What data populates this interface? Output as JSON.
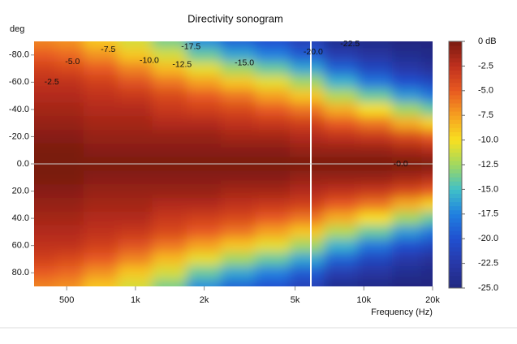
{
  "chart_data": {
    "type": "heatmap",
    "title": "Directivity sonogram",
    "y_label": "deg",
    "x_label": "Frequency (Hz)",
    "log_x": true,
    "xlim": [
      360,
      20000
    ],
    "ylim": [
      -90,
      90
    ],
    "xticks": [
      500,
      {
        "value": 1000,
        "label": "1k"
      },
      {
        "value": 2000,
        "label": "2k"
      },
      {
        "value": 5000,
        "label": "5k"
      },
      {
        "value": 10000,
        "label": "10k"
      },
      {
        "value": 20000,
        "label": "20k"
      }
    ],
    "yticks": [
      {
        "value": -80,
        "label": "-80.0"
      },
      {
        "value": -60,
        "label": "-60.0"
      },
      {
        "value": -40,
        "label": "-40.0"
      },
      {
        "value": -20,
        "label": "-20.0"
      },
      {
        "value": 0,
        "label": "0.0"
      },
      {
        "value": 20,
        "label": "20.0"
      },
      {
        "value": 40,
        "label": "40.0"
      },
      {
        "value": 60,
        "label": "60.0"
      },
      {
        "value": 80,
        "label": "80.0"
      }
    ],
    "x": [
      400,
      500,
      700,
      1000,
      1400,
      2000,
      2800,
      4000,
      5600,
      8000,
      11000,
      16000,
      20000
    ],
    "y": [
      -90,
      -80,
      -70,
      -60,
      -50,
      -40,
      -30,
      -20,
      -10,
      0,
      10,
      20,
      30,
      40,
      50,
      60,
      70,
      80,
      90
    ],
    "z": [
      [
        -6.5,
        -7,
        -9,
        -11,
        -13.5,
        -17,
        -19,
        -20,
        -21.5,
        -24,
        -24.5,
        -25,
        -25
      ],
      [
        -5,
        -5.5,
        -7,
        -9,
        -11,
        -14,
        -16,
        -17.5,
        -19.5,
        -22,
        -23,
        -24,
        -24.5
      ],
      [
        -3.5,
        -4,
        -5,
        -6.5,
        -8.5,
        -10.5,
        -12.5,
        -14,
        -16,
        -19,
        -21,
        -22.5,
        -23.5
      ],
      [
        -2.5,
        -2.5,
        -3.5,
        -4.5,
        -6,
        -7.5,
        -9,
        -10.5,
        -12.5,
        -15.5,
        -18,
        -20,
        -21
      ],
      [
        -2,
        -2,
        -2.5,
        -3,
        -4,
        -5,
        -6,
        -7.5,
        -9,
        -12,
        -14,
        -16.5,
        -18
      ],
      [
        -1.5,
        -1.5,
        -2,
        -2,
        -3,
        -3.5,
        -4,
        -5,
        -6,
        -8,
        -10,
        -12.5,
        -14
      ],
      [
        -1,
        -1,
        -1.5,
        -1.5,
        -2,
        -2,
        -2.5,
        -3,
        -3.5,
        -5,
        -6,
        -8,
        -9.5
      ],
      [
        -0.5,
        -0.5,
        -1,
        -1,
        -1,
        -1,
        -1.5,
        -1.5,
        -2,
        -2.5,
        -3,
        -4,
        -5
      ],
      [
        0,
        0,
        -0.5,
        -0.5,
        -0.5,
        -0.5,
        -0.5,
        -0.5,
        -1,
        -1,
        -1,
        -1.5,
        -2
      ],
      [
        0,
        0,
        0,
        0,
        0,
        0,
        0,
        0,
        0,
        0,
        0,
        0,
        0
      ],
      [
        0,
        0,
        -0.5,
        -0.5,
        -0.5,
        -0.5,
        -0.5,
        -0.5,
        -1,
        -1,
        -1,
        -1.5,
        -2
      ],
      [
        -0.5,
        -0.5,
        -1,
        -1,
        -1,
        -1,
        -1.5,
        -1.5,
        -2,
        -2.5,
        -3,
        -4,
        -5
      ],
      [
        -1,
        -1,
        -1.5,
        -1.5,
        -2,
        -2,
        -2.5,
        -3,
        -3.5,
        -5,
        -6,
        -8,
        -9.5
      ],
      [
        -1.5,
        -1.5,
        -2,
        -2,
        -3,
        -3.5,
        -4,
        -5,
        -6,
        -8,
        -10,
        -12.5,
        -14
      ],
      [
        -2,
        -2,
        -2.5,
        -3,
        -4,
        -5,
        -6,
        -7.5,
        -9,
        -12,
        -14,
        -16.5,
        -18
      ],
      [
        -2.5,
        -2.5,
        -3.5,
        -4.5,
        -6,
        -7.5,
        -9,
        -10.5,
        -12.5,
        -15.5,
        -18,
        -20,
        -21
      ],
      [
        -3.5,
        -4,
        -5,
        -6.5,
        -8.5,
        -10.5,
        -12.5,
        -14,
        -16,
        -19,
        -21,
        -22.5,
        -23.5
      ],
      [
        -5,
        -5.5,
        -7,
        -9,
        -11,
        -14,
        -16,
        -17.5,
        -19.5,
        -22,
        -23,
        -24,
        -24.5
      ],
      [
        -6.5,
        -7,
        -9,
        -11,
        -13.5,
        -17,
        -19,
        -20,
        -21.5,
        -24,
        -24.5,
        -25,
        -25
      ]
    ],
    "colorbar_lim": [
      -25,
      0
    ],
    "colorscale": [
      "#202880",
      "#2838a8",
      "#2050d0",
      "#2080e0",
      "#40c0c8",
      "#a0d860",
      "#f8e020",
      "#f6a020",
      "#e85a20",
      "#c0301e",
      "#7a1a10"
    ],
    "colorbar_ticks": [
      {
        "value": 0,
        "label": "0 dB"
      },
      -2.5,
      {
        "value": -5,
        "label": "-5.0"
      },
      -7.5,
      {
        "value": -10,
        "label": "-10.0"
      },
      -12.5,
      {
        "value": -15,
        "label": "-15.0"
      },
      -17.5,
      {
        "value": -20,
        "label": "-20.0"
      },
      -22.5,
      {
        "value": -25,
        "label": "-25.0"
      }
    ],
    "annotations": [
      {
        "text": "-2.5",
        "x": 430,
        "y": -60
      },
      {
        "text": "-5.0",
        "x": 530,
        "y": -75
      },
      {
        "text": "-7.5",
        "x": 760,
        "y": -84
      },
      {
        "text": "-10.0",
        "x": 1150,
        "y": -76
      },
      {
        "text": "-12.5",
        "x": 1600,
        "y": -73
      },
      {
        "text": "-17.5",
        "x": 1750,
        "y": -86
      },
      {
        "text": "-15.0",
        "x": 3000,
        "y": -74
      },
      {
        "text": "-20.0",
        "x": 6000,
        "y": -82
      },
      {
        "text": "-22.5",
        "x": 8700,
        "y": -88
      },
      {
        "text": "-0.0",
        "x": 14500,
        "y": 0
      }
    ]
  }
}
